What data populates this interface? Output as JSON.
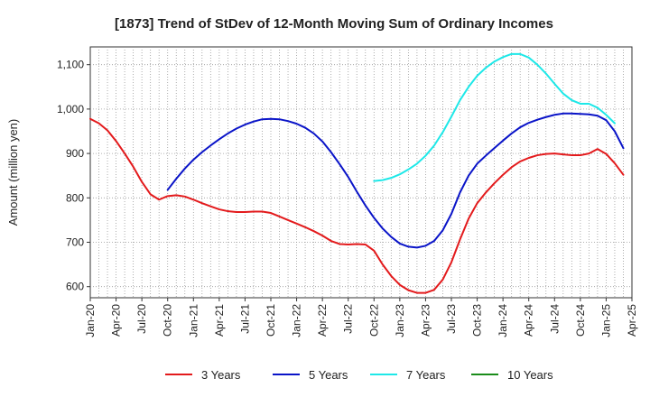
{
  "chart_data": {
    "type": "line",
    "title": "[1873]  Trend of StDev of 12-Month Moving Sum of Ordinary Incomes",
    "ylabel": "Amount (million yen)",
    "xlabel": "",
    "ylim": [
      575,
      1140
    ],
    "yticks": [
      600,
      700,
      800,
      900,
      1000,
      1100
    ],
    "ytick_labels": [
      "600",
      "700",
      "800",
      "900",
      "1,000",
      "1,100"
    ],
    "x_ticks": [
      "Jan-20",
      "Apr-20",
      "Jul-20",
      "Oct-20",
      "Jan-21",
      "Apr-21",
      "Jul-21",
      "Oct-21",
      "Jan-22",
      "Apr-22",
      "Jul-22",
      "Oct-22",
      "Jan-23",
      "Apr-23",
      "Jul-23",
      "Oct-23",
      "Jan-24",
      "Apr-24",
      "Jul-24",
      "Oct-24",
      "Jan-25",
      "Apr-25"
    ],
    "grid": true,
    "legend_position": "bottom",
    "series": [
      {
        "name": "3 Years",
        "color": "#e31a1c",
        "start_month": 0,
        "values": [
          978,
          968,
          952,
          928,
          900,
          870,
          836,
          808,
          796,
          804,
          806,
          803,
          796,
          788,
          781,
          774,
          770,
          768,
          768,
          769,
          769,
          766,
          758,
          750,
          742,
          734,
          725,
          715,
          703,
          696,
          695,
          696,
          695,
          681,
          650,
          624,
          604,
          592,
          586,
          586,
          593,
          616,
          655,
          706,
          753,
          788,
          812,
          833,
          852,
          869,
          882,
          890,
          896,
          899,
          900,
          898,
          896,
          896,
          900,
          910,
          899,
          878,
          852
        ]
      },
      {
        "name": "5 Years",
        "color": "#0a14c8",
        "start_month": 9,
        "values": [
          818,
          843,
          866,
          886,
          903,
          918,
          932,
          945,
          956,
          965,
          972,
          977,
          978,
          977,
          973,
          967,
          958,
          945,
          927,
          903,
          876,
          847,
          814,
          783,
          755,
          731,
          712,
          697,
          690,
          688,
          692,
          703,
          727,
          764,
          812,
          850,
          877,
          895,
          912,
          929,
          945,
          959,
          969,
          976,
          982,
          987,
          990,
          990,
          989,
          988,
          985,
          975,
          950,
          912
        ]
      },
      {
        "name": "7 Years",
        "color": "#1ee8e8",
        "start_month": 33,
        "values": [
          838,
          840,
          845,
          853,
          864,
          877,
          895,
          918,
          948,
          983,
          1020,
          1050,
          1075,
          1093,
          1107,
          1117,
          1124,
          1124,
          1116,
          1100,
          1080,
          1057,
          1035,
          1020,
          1012,
          1012,
          1003,
          987,
          968
        ]
      },
      {
        "name": "10 Years",
        "color": "#1a8c1a",
        "start_month": 0,
        "values": []
      }
    ]
  }
}
